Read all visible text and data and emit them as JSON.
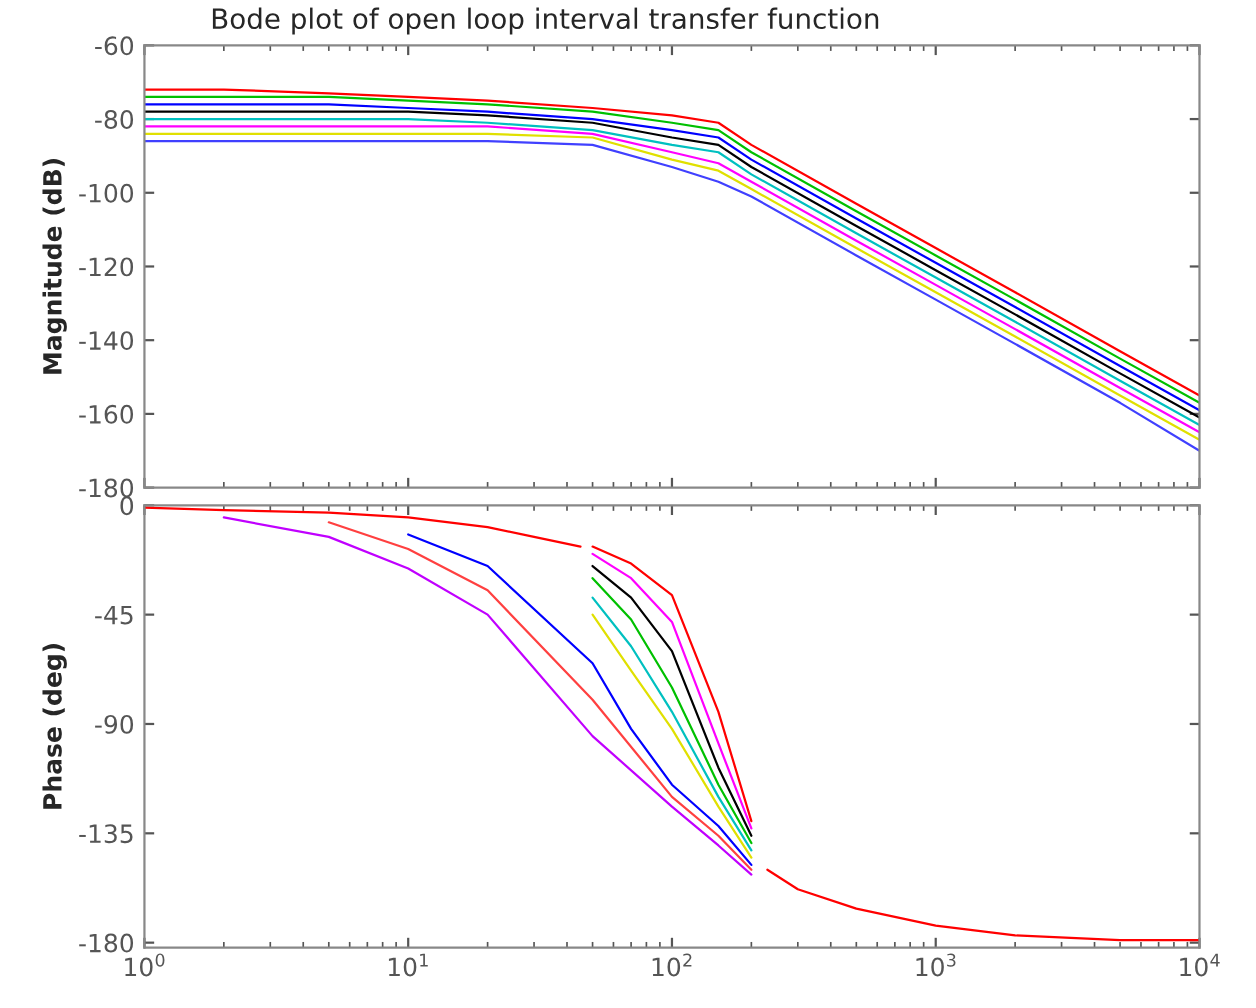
{
  "chart_data": [
    {
      "type": "line",
      "title": "Bode plot of open loop interval transfer function",
      "ylabel": "Magnitude (dB)",
      "log": "x",
      "grid": false,
      "legend": false,
      "tick_labels": "y",
      "x": [
        1,
        2,
        5,
        10,
        20,
        50,
        100,
        150,
        200,
        500,
        1000,
        2000,
        5000,
        10000
      ],
      "xlim": [
        1,
        10000
      ],
      "xticks": [
        {
          "value": 1,
          "label": null
        },
        {
          "value": 10,
          "label": null
        },
        {
          "value": 100,
          "label": null
        },
        {
          "value": 1000,
          "label": null
        },
        {
          "value": 10000,
          "label": null
        }
      ],
      "ylim": [
        -180,
        -60
      ],
      "yticks": [
        -180,
        -160,
        -140,
        -120,
        -100,
        -80,
        -60
      ],
      "series": [
        {
          "color": "#ff0000",
          "values": [
            -72,
            -72,
            -73,
            -74,
            -75,
            -77,
            -79,
            -81,
            -87,
            -103,
            -115,
            -127,
            -143,
            -155
          ]
        },
        {
          "color": "#00c000",
          "values": [
            -74,
            -74,
            -74,
            -75,
            -76,
            -78,
            -81,
            -83,
            -89,
            -105,
            -117,
            -129,
            -145,
            -157
          ]
        },
        {
          "color": "#0000ff",
          "values": [
            -76,
            -76,
            -76,
            -77,
            -78,
            -80,
            -83,
            -85,
            -91,
            -107,
            -119,
            -131,
            -147,
            -159
          ]
        },
        {
          "color": "#000000",
          "values": [
            -78,
            -78,
            -78,
            -78,
            -79,
            -81,
            -85,
            -87,
            -93,
            -109,
            -121,
            -133,
            -149,
            -161
          ]
        },
        {
          "color": "#00c0c0",
          "values": [
            -80,
            -80,
            -80,
            -80,
            -81,
            -83,
            -87,
            -89,
            -95,
            -111,
            -123,
            -135,
            -151,
            -163
          ]
        },
        {
          "color": "#ff00ff",
          "values": [
            -82,
            -82,
            -82,
            -82,
            -82,
            -84,
            -89,
            -92,
            -97,
            -113,
            -125,
            -137,
            -153,
            -165
          ]
        },
        {
          "color": "#e0e000",
          "values": [
            -84,
            -84,
            -84,
            -84,
            -84,
            -85,
            -91,
            -94,
            -99,
            -115,
            -127,
            -139,
            -155,
            -167
          ]
        },
        {
          "color": "#4040ff",
          "values": [
            -86,
            -86,
            -86,
            -86,
            -86,
            -87,
            -93,
            -97,
            -101,
            -117,
            -129,
            -141,
            -157,
            -170
          ]
        }
      ]
    },
    {
      "type": "line",
      "ylabel": "Phase (deg)",
      "log": "x",
      "grid": false,
      "legend": false,
      "xlim": [
        1,
        10000
      ],
      "xticks": [
        {
          "value": 1,
          "label": "10$^{0}$"
        },
        {
          "value": 10,
          "label": "10$^{1}$"
        },
        {
          "value": 100,
          "label": "10$^{2}$"
        },
        {
          "value": 1000,
          "label": "10$^{3}$"
        },
        {
          "value": 10000,
          "label": "10$^{4}$"
        }
      ],
      "ylim": [
        -182,
        0
      ],
      "yticks": [
        -180,
        -135,
        -90,
        -45,
        0
      ],
      "series": [
        {
          "color": "#ff0000",
          "x": [
            50,
            70,
            100,
            150,
            200
          ],
          "values": [
            -17,
            -24,
            -37,
            -85,
            -130
          ]
        },
        {
          "color": "#ff00ff",
          "x": [
            50,
            70,
            100,
            150,
            200
          ],
          "values": [
            -20,
            -30,
            -48,
            -98,
            -133
          ]
        },
        {
          "color": "#000000",
          "x": [
            50,
            70,
            100,
            150,
            200
          ],
          "values": [
            -25,
            -38,
            -60,
            -108,
            -136
          ]
        },
        {
          "color": "#00c000",
          "x": [
            50,
            70,
            100,
            150,
            200
          ],
          "values": [
            -30,
            -47,
            -75,
            -115,
            -139
          ]
        },
        {
          "color": "#00c0c0",
          "x": [
            50,
            70,
            100,
            150,
            200
          ],
          "values": [
            -38,
            -58,
            -85,
            -120,
            -142
          ]
        },
        {
          "color": "#e0e000",
          "x": [
            50,
            70,
            100,
            150,
            200
          ],
          "values": [
            -45,
            -68,
            -92,
            -124,
            -145
          ]
        },
        {
          "color": "#0000ff",
          "x": [
            10,
            20,
            50,
            70,
            100,
            150,
            200
          ],
          "values": [
            -12,
            -25,
            -65,
            -92,
            -115,
            -132,
            -148
          ]
        },
        {
          "color": "#ff4040",
          "x": [
            5,
            10,
            20,
            50,
            100,
            150,
            200
          ],
          "values": [
            -7,
            -18,
            -35,
            -80,
            -120,
            -136,
            -150
          ]
        },
        {
          "color": "#c000ff",
          "x": [
            2,
            5,
            10,
            20,
            50,
            100,
            150,
            200
          ],
          "values": [
            -5,
            -13,
            -26,
            -45,
            -95,
            -124,
            -140,
            -152
          ]
        },
        {
          "color": "#ff0000",
          "x": [
            1,
            2,
            5,
            10,
            20,
            30,
            45
          ],
          "values": [
            -1,
            -2,
            -3,
            -5,
            -9,
            -13,
            -17
          ]
        },
        {
          "color": "#ff0000",
          "x": [
            230,
            300,
            500,
            1000,
            2000,
            5000,
            10000
          ],
          "values": [
            -150,
            -158,
            -166,
            -173,
            -177,
            -179,
            -179
          ]
        }
      ]
    }
  ]
}
